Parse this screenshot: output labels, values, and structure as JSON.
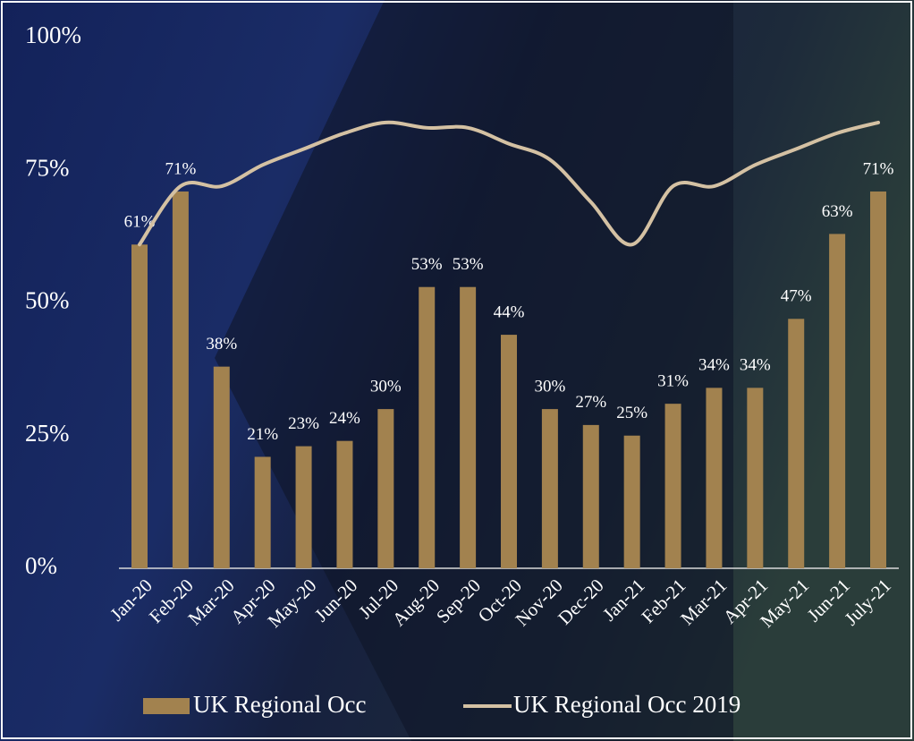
{
  "chart_data": {
    "type": "bar",
    "categories": [
      "Jan-20",
      "Feb-20",
      "Mar-20",
      "Apr-20",
      "May-20",
      "Jun-20",
      "Jul-20",
      "Aug-20",
      "Sep-20",
      "Oct-20",
      "Nov-20",
      "Dec-20",
      "Jan-21",
      "Feb-21",
      "Mar-21",
      "Apr-21",
      "May-21",
      "Jun-21",
      "July-21"
    ],
    "series": [
      {
        "name": "UK Regional Occ",
        "type": "bar",
        "color": "#a2824f",
        "values": [
          61,
          71,
          38,
          21,
          23,
          24,
          30,
          53,
          53,
          44,
          30,
          27,
          25,
          31,
          34,
          34,
          47,
          63,
          71
        ],
        "value_labels": [
          "61%",
          "71%",
          "38%",
          "21%",
          "23%",
          "24%",
          "30%",
          "53%",
          "53%",
          "44%",
          "30%",
          "27%",
          "25%",
          "31%",
          "34%",
          "34%",
          "47%",
          "63%",
          "71%"
        ]
      },
      {
        "name": "UK Regional Occ 2019",
        "type": "line",
        "color": "#d4c1a3",
        "values": [
          61,
          72,
          72,
          76,
          79,
          82,
          84,
          83,
          83,
          80,
          77,
          69,
          61,
          72,
          72,
          76,
          79,
          82,
          84
        ]
      }
    ],
    "ylim": [
      0,
      100
    ],
    "yticks": [
      {
        "value": 0,
        "label": "0%"
      },
      {
        "value": 25,
        "label": "25%"
      },
      {
        "value": 50,
        "label": "50%"
      },
      {
        "value": 75,
        "label": "75%"
      },
      {
        "value": 100,
        "label": "100%"
      }
    ],
    "legend": "bottom"
  }
}
